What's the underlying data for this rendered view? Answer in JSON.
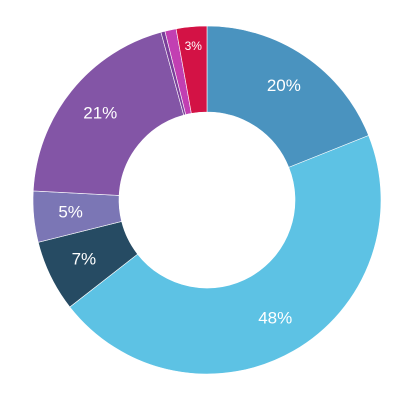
{
  "chart_data": {
    "type": "pie",
    "donut": true,
    "slices": [
      {
        "label": "20%",
        "value": 20,
        "color": "#4A93BF"
      },
      {
        "label": "48%",
        "value": 48,
        "color": "#5DC2E4"
      },
      {
        "label": "7%",
        "value": 7,
        "color": "#264B63"
      },
      {
        "label": "5%",
        "value": 5,
        "color": "#7B76B5"
      },
      {
        "label": "21%",
        "value": 21,
        "color": "#8355A6"
      },
      {
        "label": "",
        "value": 0.4,
        "color": "#7A3F9A"
      },
      {
        "label": "",
        "value": 1.1,
        "color": "#C23FB2"
      },
      {
        "label": "3%",
        "value": 3,
        "color": "#D31245"
      }
    ]
  }
}
